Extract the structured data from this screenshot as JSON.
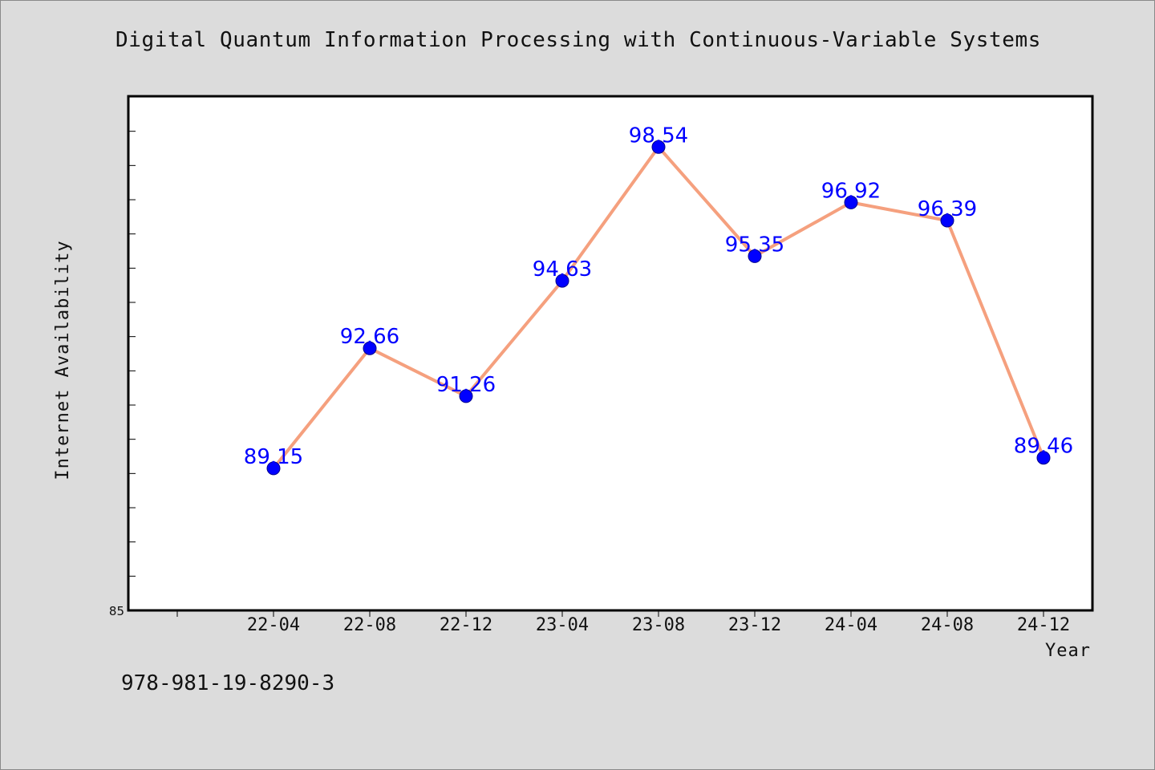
{
  "page": {
    "title": "Digital Quantum Information Processing with Continuous-Variable Systems",
    "footnote": "978-981-19-8290-3"
  },
  "colors": {
    "background": "#dcdcdc",
    "plot_background": "#ffffff",
    "line": "#f5a07e",
    "marker": "#0000ff",
    "data_label": "#0000ff"
  },
  "chart_data": {
    "type": "line",
    "title": "Digital Quantum Information Processing with Continuous-Variable Systems",
    "xlabel": "Year",
    "ylabel": "Internet Availability",
    "categories": [
      "22-04",
      "22-08",
      "22-12",
      "23-04",
      "23-08",
      "23-12",
      "24-04",
      "24-08",
      "24-12"
    ],
    "series": [
      {
        "values": [
          89.15,
          92.66,
          91.26,
          94.63,
          98.54,
          95.35,
          96.92,
          96.39,
          89.46
        ]
      }
    ],
    "data_labels": [
      "89.15",
      "92.66",
      "91.26",
      "94.63",
      "98.54",
      "95.35",
      "96.92",
      "96.39",
      "89.46"
    ],
    "ylim": [
      85,
      100
    ],
    "y_tick_labels": [
      "85"
    ],
    "y_minor_tick_step": 1,
    "grid": false,
    "legend": "none"
  }
}
